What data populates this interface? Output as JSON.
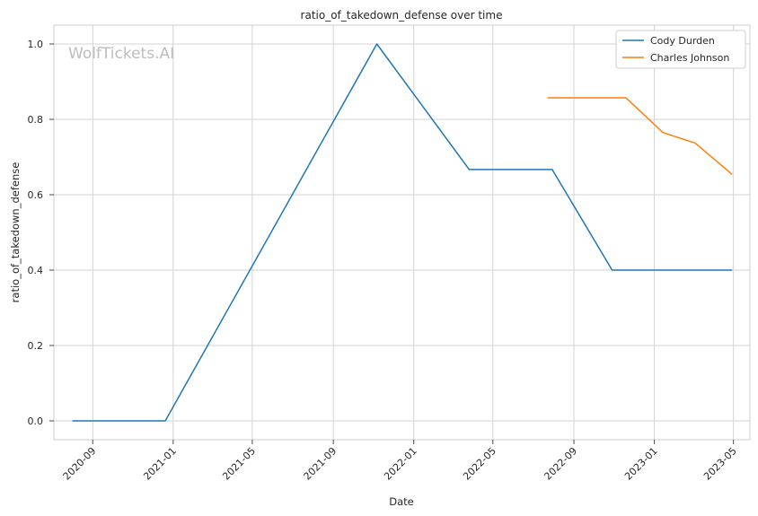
{
  "watermark": "WolfTickets.AI",
  "chart_data": {
    "type": "line",
    "title": "ratio_of_takedown_defense over time",
    "xlabel": "Date",
    "ylabel": "ratio_of_takedown_defense",
    "x_axis": {
      "type": "date",
      "range": [
        "2020-07-04",
        "2023-05-26"
      ],
      "ticks": [
        "2020-09-01",
        "2021-01-01",
        "2021-05-01",
        "2021-09-01",
        "2022-01-01",
        "2022-05-01",
        "2022-09-01",
        "2023-01-01",
        "2023-05-01"
      ],
      "tick_labels": [
        "2020-09",
        "2021-01",
        "2021-05",
        "2021-09",
        "2022-01",
        "2022-05",
        "2022-09",
        "2023-01",
        "2023-05"
      ],
      "tick_rotation_deg": 45
    },
    "y_axis": {
      "range": [
        -0.05,
        1.05
      ],
      "ticks": [
        0.0,
        0.2,
        0.4,
        0.6,
        0.8,
        1.0
      ],
      "tick_labels": [
        "0.0",
        "0.2",
        "0.4",
        "0.6",
        "0.8",
        "1.0"
      ]
    },
    "grid": true,
    "legend": {
      "position": "top-right"
    },
    "series": [
      {
        "name": "Cody Durden",
        "color": "#1f77b4",
        "points": [
          {
            "x": "2020-08-01",
            "y": 0.0
          },
          {
            "x": "2020-12-20",
            "y": 0.0
          },
          {
            "x": "2021-11-06",
            "y": 1.0
          },
          {
            "x": "2022-03-26",
            "y": 0.667
          },
          {
            "x": "2022-07-30",
            "y": 0.667
          },
          {
            "x": "2022-10-29",
            "y": 0.4
          },
          {
            "x": "2023-04-29",
            "y": 0.4
          }
        ]
      },
      {
        "name": "Charles Johnson",
        "color": "#ff7f0e",
        "points": [
          {
            "x": "2022-07-23",
            "y": 0.857
          },
          {
            "x": "2022-11-19",
            "y": 0.857
          },
          {
            "x": "2023-01-14",
            "y": 0.765
          },
          {
            "x": "2023-03-04",
            "y": 0.737
          },
          {
            "x": "2023-04-29",
            "y": 0.654
          }
        ]
      }
    ]
  }
}
